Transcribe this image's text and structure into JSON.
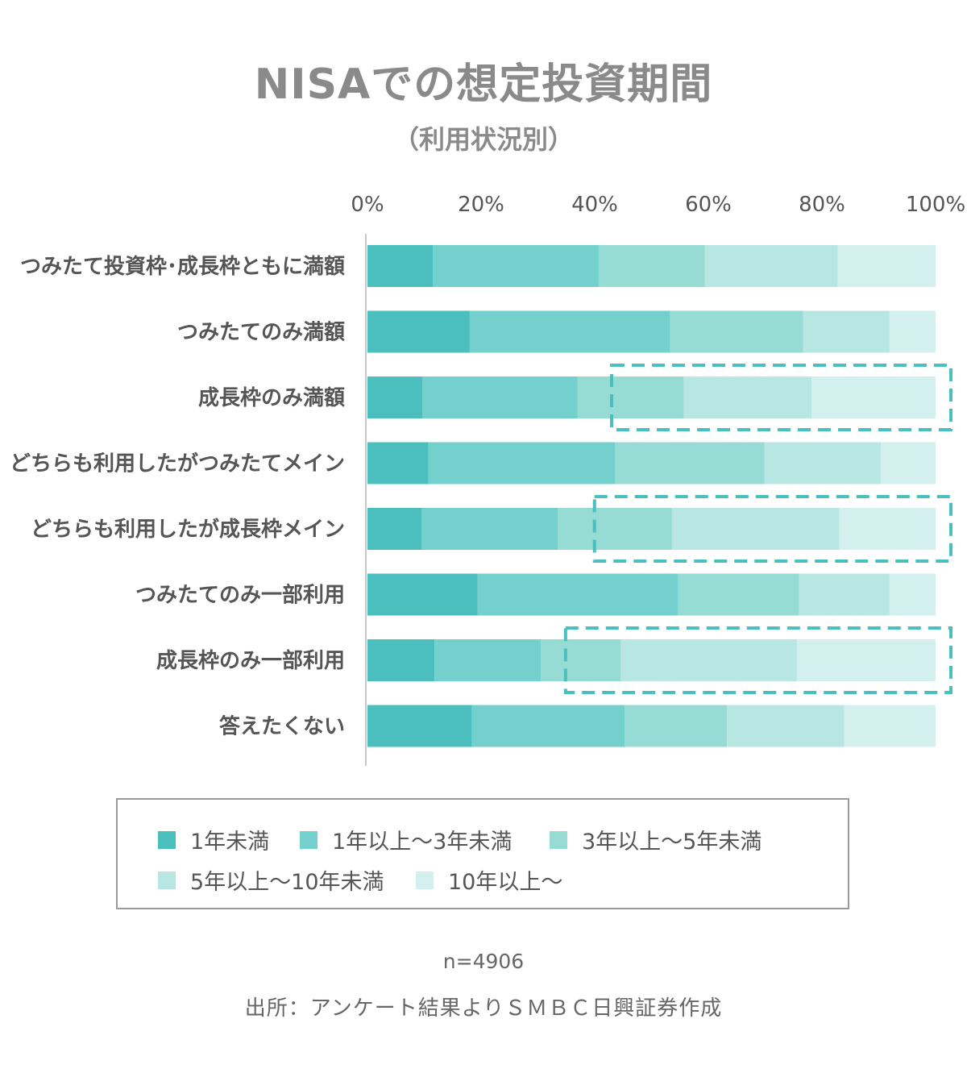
{
  "chart_data": {
    "type": "bar",
    "orientation": "horizontal",
    "stacked": true,
    "normalized": true,
    "title": "NISAでの想定投資期間",
    "subtitle": "（利用状況別）",
    "categories": [
      "つみたて投資枠･成長枠ともに満額",
      "つみたてのみ満額",
      "成長枠のみ満額",
      "どちらも利用したがつみたてメイン",
      "どちらも利用したが成長枠メイン",
      "つみたてのみ一部利用",
      "成長枠のみ一部利用",
      "答えたくない"
    ],
    "series": [
      {
        "name": "1年未満",
        "color": "#4bbfbe",
        "values": [
          11.5,
          18.0,
          9.7,
          10.7,
          9.5,
          19.4,
          11.8,
          18.4
        ]
      },
      {
        "name": "1年以上〜3年未満",
        "color": "#73d0cc",
        "values": [
          29.2,
          35.3,
          27.3,
          32.9,
          24.0,
          35.3,
          18.7,
          26.9
        ]
      },
      {
        "name": "3年以上〜5年未満",
        "color": "#97dbd5",
        "values": [
          18.7,
          23.4,
          18.7,
          26.3,
          20.1,
          21.3,
          14.1,
          18.0
        ]
      },
      {
        "name": "5年以上〜10年未満",
        "color": "#b8e7e3",
        "values": [
          23.4,
          15.2,
          22.5,
          20.5,
          29.5,
          15.9,
          31.0,
          20.6
        ]
      },
      {
        "name": "10年以上〜",
        "color": "#d4f0ee",
        "values": [
          17.2,
          8.1,
          21.8,
          9.6,
          16.9,
          8.1,
          24.4,
          16.1
        ]
      }
    ],
    "xlim": [
      0,
      100
    ],
    "xticks": [
      "0%",
      "20%",
      "40%",
      "60%",
      "80%",
      "100%"
    ],
    "highlighted_categories": [
      "成長枠のみ満額",
      "どちらも利用したが成長枠メイン",
      "成長枠のみ一部利用"
    ],
    "highlight_style": "dashed outline around long-term segments",
    "highlight_color": "#4bbfbe"
  },
  "notes": {
    "sample": "n=4906",
    "source": "出所：アンケート結果よりＳＭＢＣ日興証券作成"
  }
}
